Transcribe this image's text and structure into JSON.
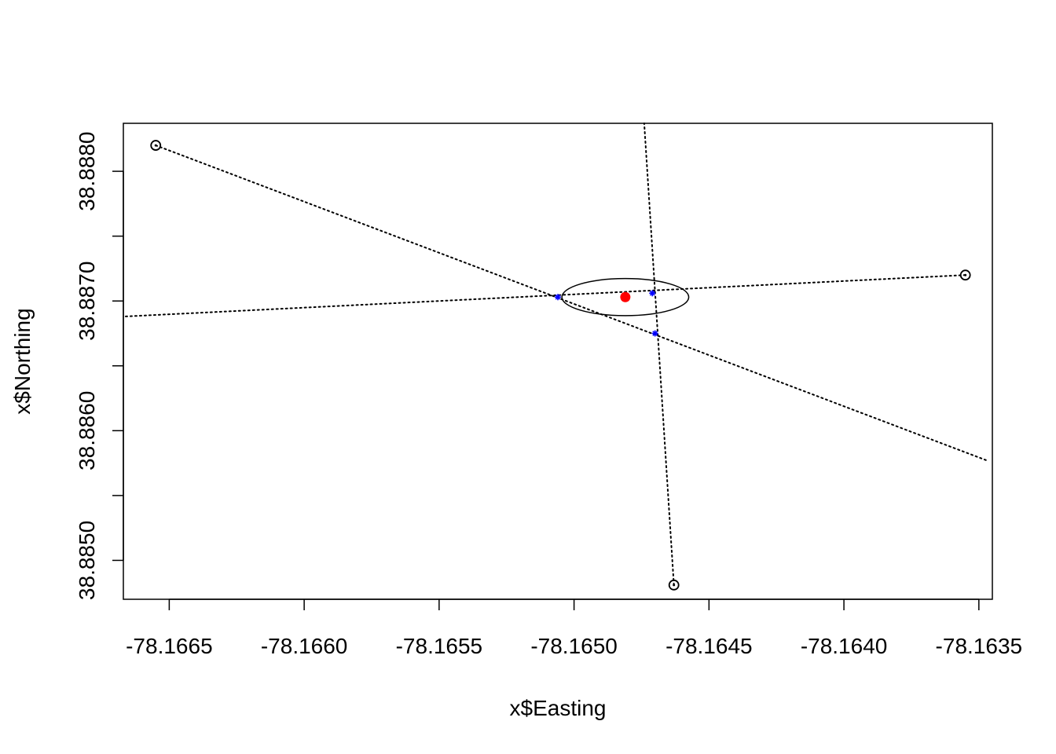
{
  "chart_data": {
    "type": "scatter",
    "xlabel": "x$Easting",
    "ylabel": "x$Northing",
    "xlim": [
      -78.16667,
      -78.16345
    ],
    "ylim": [
      38.8847,
      38.88837
    ],
    "x_ticks": [
      -78.1665,
      -78.166,
      -78.1655,
      -78.165,
      -78.1645,
      -78.164,
      -78.1635
    ],
    "x_tick_labels": [
      "-78.1665",
      "-78.1660",
      "-78.1655",
      "-78.1650",
      "-78.1645",
      "-78.1640",
      "-78.1635"
    ],
    "y_ticks": [
      38.885,
      38.8855,
      38.886,
      38.8865,
      38.887,
      38.8875,
      38.888
    ],
    "y_tick_labels": [
      "38.8850",
      "",
      "38.8860",
      "",
      "38.8870",
      "",
      "38.8880"
    ],
    "grid": false,
    "observer_points": [
      {
        "x": -78.16655,
        "y": 38.8882
      },
      {
        "x": -78.16355,
        "y": 38.8872
      },
      {
        "x": -78.16463,
        "y": 38.88481
      }
    ],
    "bearing_lines": [
      {
        "x1": -78.16655,
        "y1": 38.8882,
        "x2": -78.16347,
        "y2": 38.88577
      },
      {
        "x1": -78.16355,
        "y1": 38.8872,
        "x2": -78.16667,
        "y2": 38.88688
      },
      {
        "x1": -78.16463,
        "y1": 38.88481,
        "x2": -78.16474,
        "y2": 38.88837
      }
    ],
    "intersections": [
      {
        "x": -78.16506,
        "y": 38.88703
      },
      {
        "x": -78.16471,
        "y": 38.88706
      },
      {
        "x": -78.1647,
        "y": 38.88675
      }
    ],
    "estimate": {
      "x": -78.16481,
      "y": 38.88703
    },
    "error_ellipse": {
      "cx": -78.16481,
      "cy": 38.88703,
      "rx": 0.000235,
      "ry": 0.000143
    },
    "colors": {
      "estimate": "#ff0000",
      "intersections": "#0000ff",
      "lines": "#000000"
    }
  }
}
